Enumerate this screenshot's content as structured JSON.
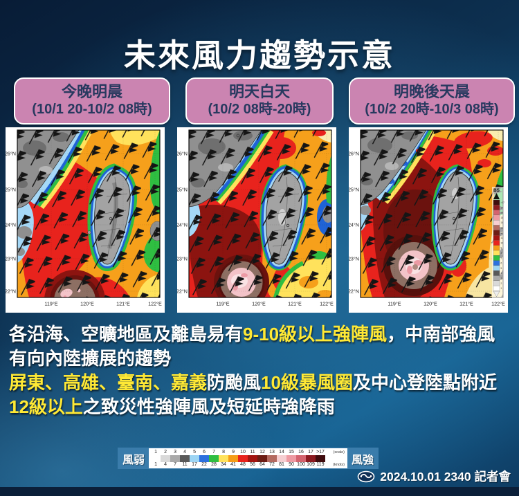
{
  "title": "未來風力趨勢示意",
  "time_labels": [
    {
      "line1": "今晚明晨",
      "line2": "(10/1 20-10/2 08時)"
    },
    {
      "line1": "明天白天",
      "line2": "(10/2 08時-20時)"
    },
    {
      "line1": "明晚後天晨",
      "line2": "(10/2 20時-10/3 08時)"
    }
  ],
  "map_axis": {
    "lat": [
      "26°N",
      "25°N",
      "24°N",
      "23°N",
      "22°N"
    ],
    "lon": [
      "119°E",
      "120°E",
      "121°E",
      "122°E"
    ],
    "bs_title": "BS"
  },
  "notes": {
    "p1s1": "各沿海、空曠地區及離島易有",
    "p1s2": "9-10級以上強陣風",
    "p1s3": "，中南部強風有向內陸擴展的趨勢",
    "p2s1": "屏東、高雄、臺南、嘉義",
    "p2s2": "防颱風",
    "p2s3": "10級暴風圈",
    "p2s4": "及中心登陸點附近",
    "p2s5": "12級以上",
    "p2s6": "之致災性強陣風及短延時強降雨"
  },
  "legend": {
    "weak_label": "風弱",
    "strong_label": "風強",
    "scale_caption": "(scale)",
    "knots_caption": "(knots)",
    "scale_values": [
      "1",
      "2",
      "3",
      "4",
      "5",
      "6",
      "7",
      "8",
      "9",
      "10",
      "11",
      "12",
      "13",
      "14",
      "15",
      "16",
      "17",
      ">17"
    ],
    "knots_values": [
      "1",
      "4",
      "7",
      "11",
      "17",
      "22",
      "28",
      "34",
      "41",
      "48",
      "56",
      "64",
      "72",
      "81",
      "90",
      "100",
      "109",
      "119"
    ],
    "cell_colors": [
      "#ffffff",
      "#d9d9d9",
      "#a9a9a9",
      "#595959",
      "#9dd5f4",
      "#2c70de",
      "#2fbe41",
      "#ffe25c",
      "#f59d18",
      "#e8231d",
      "#a31511",
      "#6d1d15",
      "#b46a60",
      "#f6ced1",
      "#ee9aa2",
      "#d4636e",
      "#8c1a20",
      "#400c0e"
    ]
  },
  "footer": {
    "timestamp": "2024.10.01 2340 記者會"
  },
  "colors": {
    "background_dark": "#081c36",
    "background_light": "#155e8e",
    "label_pink": "#cb84b1",
    "label_text": "#28395f",
    "accent_yellow": "#ffe935",
    "legend_band": "#3a7cab",
    "bottom_bar": "#0b1f39",
    "map_orange": "#f6a01b",
    "map_red": "#e8231d",
    "map_darkred": "#8c1410",
    "map_green": "#2fbe41",
    "map_blue": "#1f63d6",
    "map_lightblue": "#a5d8f7",
    "map_land_gray": "#909090",
    "typhoon_taupe": "#8d6f63",
    "typhoon_pink": "#f3c3c8"
  }
}
